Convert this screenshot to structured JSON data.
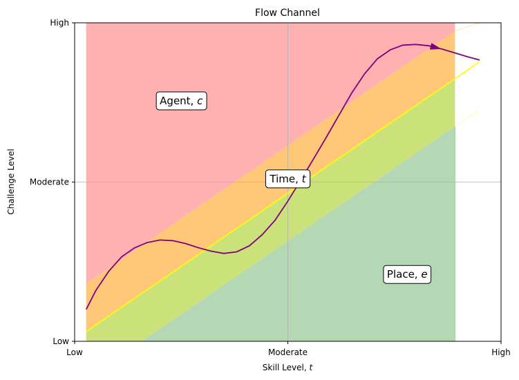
{
  "chart_data": {
    "type": "area",
    "title": "Flow Channel",
    "xlabel": "Skill Level, ",
    "xlabel_var": "t",
    "ylabel": "Challenge Level",
    "xlim": [
      0,
      1
    ],
    "ylim": [
      0,
      1
    ],
    "x_ticks": [
      {
        "value": 0,
        "label": "Low"
      },
      {
        "value": 0.5,
        "label": "Moderate"
      },
      {
        "value": 1,
        "label": "High"
      }
    ],
    "y_ticks": [
      {
        "value": 0,
        "label": "Low"
      },
      {
        "value": 0.5,
        "label": "Moderate"
      },
      {
        "value": 1,
        "label": "High"
      }
    ],
    "grid": true,
    "x_start": 0.027,
    "x_end": 0.95,
    "x_fill_end": 0.892,
    "regions": [
      {
        "lower": "top",
        "upper": "top",
        "color": "#ffb0b0"
      },
      {
        "offset_low": 0,
        "offset_high": 0.15,
        "color": "#ffc878"
      },
      {
        "offset_low": -0.15,
        "offset_high": 0,
        "color": "#cbe27a"
      },
      {
        "offset_low": "bottom",
        "offset_high": -0.15,
        "color": "#b3d8b3"
      }
    ],
    "flow_line": {
      "slope": 0.918,
      "intercept": 0.0057,
      "color": "#ffff00"
    },
    "upper_boundary": {
      "slope": 0.918,
      "intercept": 0.1557
    },
    "lower_boundary": {
      "slope": 0.918,
      "intercept": -0.1443
    },
    "trajectory": {
      "color": "#800080",
      "points": [
        [
          0.027,
          0.1
        ],
        [
          0.05,
          0.16
        ],
        [
          0.08,
          0.22
        ],
        [
          0.11,
          0.265
        ],
        [
          0.14,
          0.293
        ],
        [
          0.17,
          0.31
        ],
        [
          0.2,
          0.318
        ],
        [
          0.23,
          0.316
        ],
        [
          0.26,
          0.307
        ],
        [
          0.29,
          0.294
        ],
        [
          0.32,
          0.283
        ],
        [
          0.35,
          0.276
        ],
        [
          0.38,
          0.281
        ],
        [
          0.41,
          0.3
        ],
        [
          0.44,
          0.335
        ],
        [
          0.47,
          0.38
        ],
        [
          0.5,
          0.44
        ],
        [
          0.53,
          0.505
        ],
        [
          0.56,
          0.572
        ],
        [
          0.59,
          0.64
        ],
        [
          0.62,
          0.71
        ],
        [
          0.65,
          0.78
        ],
        [
          0.68,
          0.84
        ],
        [
          0.71,
          0.887
        ],
        [
          0.74,
          0.915
        ],
        [
          0.77,
          0.93
        ],
        [
          0.8,
          0.932
        ],
        [
          0.83,
          0.928
        ],
        [
          0.86,
          0.918
        ],
        [
          0.89,
          0.906
        ],
        [
          0.92,
          0.894
        ],
        [
          0.95,
          0.883
        ]
      ],
      "arrow_at": 0.84
    },
    "annotations": [
      {
        "text": "Agent, ",
        "var": "c",
        "x": 0.25,
        "y": 0.755
      },
      {
        "text": "Time, ",
        "var": "t",
        "x": 0.5,
        "y": 0.51
      },
      {
        "text": "Place, ",
        "var": "e",
        "x": 0.78,
        "y": 0.21
      }
    ]
  }
}
